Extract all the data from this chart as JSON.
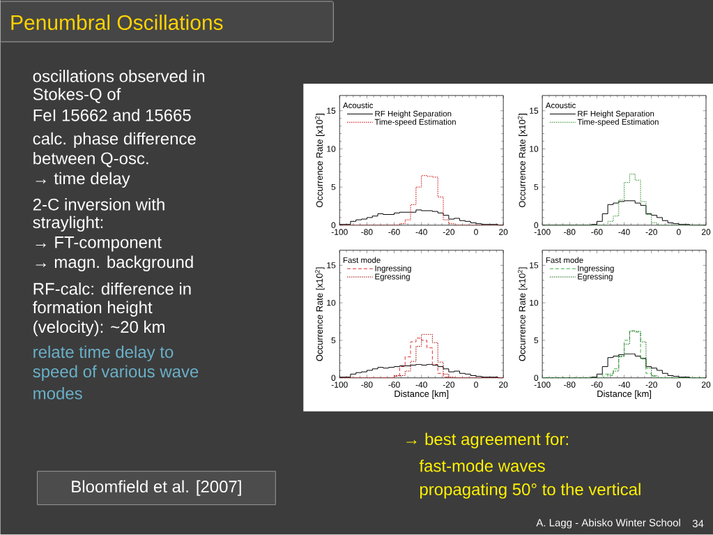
{
  "chart_data": [
    {
      "type": "histogram",
      "bins": [
        -100,
        -96,
        -92,
        -88,
        -84,
        -80,
        -76,
        -72,
        -68,
        -64,
        -60,
        -56,
        -52,
        -48,
        -44,
        -40,
        -36,
        -32,
        -28,
        -24,
        -20,
        -16,
        -12,
        -8,
        -4,
        0,
        4,
        8,
        12,
        16,
        20
      ],
      "ylabel": "Occurrence Rate [x10$^{2}$]",
      "legend_title": "Acoustic",
      "legend": "top left",
      "xlim": [
        -100,
        20
      ],
      "ylim": [
        0,
        17
      ],
      "xticks": [
        -100,
        -80,
        -60,
        -40,
        -20,
        0,
        20
      ],
      "yticks": [
        0,
        5,
        10,
        15
      ],
      "series": [
        {
          "name": "RF Height Separation",
          "color": "#000000",
          "line_style": "solid",
          "values": [
            0.1,
            0.1,
            0.5,
            0.7,
            0.8,
            1.0,
            1.2,
            1.5,
            1.4,
            1.4,
            1.6,
            1.7,
            1.7,
            1.7,
            2.0,
            1.9,
            1.9,
            1.8,
            1.6,
            1.3,
            0.8,
            0.9,
            0.6,
            0.5,
            0.3,
            0.2,
            0.1,
            0.1,
            0.1,
            0
          ]
        },
        {
          "name": "Time-speed Estimation",
          "color": "#cc0000",
          "line_style": "dotted",
          "values": [
            0,
            0,
            0,
            0,
            0,
            0,
            0,
            0,
            0,
            0,
            0,
            0.2,
            0.7,
            2.7,
            5.0,
            6.5,
            6.4,
            6.3,
            3.7,
            0.7,
            0.2,
            0,
            0,
            0,
            0,
            0,
            0,
            0,
            0,
            0
          ]
        }
      ]
    },
    {
      "type": "histogram",
      "bins": [
        -100,
        -96,
        -92,
        -88,
        -84,
        -80,
        -76,
        -72,
        -68,
        -64,
        -60,
        -56,
        -52,
        -48,
        -44,
        -40,
        -36,
        -32,
        -28,
        -24,
        -20,
        -16,
        -12,
        -8,
        -4,
        0,
        4,
        8,
        12,
        16,
        20
      ],
      "ylabel": "Occurrence Rate [x10$^{2}$]",
      "legend_title": "Acoustic",
      "legend": "top left",
      "xlim": [
        -100,
        20
      ],
      "ylim": [
        0,
        17
      ],
      "xticks": [
        -100,
        -80,
        -60,
        -40,
        -20,
        0,
        20
      ],
      "yticks": [
        0,
        5,
        10,
        15
      ],
      "series": [
        {
          "name": "RF Height Separation",
          "color": "#000000",
          "line_style": "solid",
          "values": [
            0,
            0,
            0,
            0,
            0,
            0,
            0,
            0,
            0,
            0.1,
            0.5,
            1.5,
            2.7,
            2.9,
            3.1,
            3.2,
            3.2,
            2.9,
            2.6,
            1.5,
            1.3,
            1.0,
            0.6,
            0.3,
            0.2,
            0.1,
            0.1,
            0,
            0,
            0
          ]
        },
        {
          "name": "Time-speed Estimation",
          "color": "#228b22",
          "line_style": "dotted",
          "values": [
            0,
            0,
            0,
            0,
            0,
            0,
            0,
            0,
            0,
            0,
            0,
            0,
            0.5,
            1.2,
            3.3,
            5.6,
            6.7,
            5.9,
            3.1,
            1.4,
            0.3,
            0,
            0,
            0,
            0,
            0,
            0,
            0,
            0,
            0
          ]
        }
      ]
    },
    {
      "type": "histogram",
      "bins": [
        -100,
        -96,
        -92,
        -88,
        -84,
        -80,
        -76,
        -72,
        -68,
        -64,
        -60,
        -56,
        -52,
        -48,
        -44,
        -40,
        -36,
        -32,
        -28,
        -24,
        -20,
        -16,
        -12,
        -8,
        -4,
        0,
        4,
        8,
        12,
        16,
        20
      ],
      "xlabel": "Distance [km]",
      "ylabel": "Occurrence Rate [x10$^{2}$]",
      "legend_title": "Fast mode",
      "legend": "top left",
      "xlim": [
        -100,
        20
      ],
      "ylim": [
        0,
        17
      ],
      "xticks": [
        -100,
        -80,
        -60,
        -40,
        -20,
        0,
        20
      ],
      "yticks": [
        0,
        5,
        10,
        15
      ],
      "series": [
        {
          "color": "#000000",
          "line_style": "solid",
          "values": [
            0.1,
            0.1,
            0.5,
            0.7,
            0.8,
            1.0,
            1.2,
            1.4,
            1.3,
            1.4,
            1.5,
            1.6,
            1.6,
            1.7,
            1.8,
            1.7,
            1.8,
            1.7,
            1.5,
            1.2,
            0.8,
            0.9,
            0.6,
            0.5,
            0.3,
            0.2,
            0.1,
            0.1,
            0.1,
            0
          ]
        },
        {
          "name": "Ingressing",
          "color": "#e03030",
          "line_style": "dashed",
          "values": [
            0,
            0,
            0,
            0,
            0,
            0,
            0,
            0,
            0,
            0,
            0.2,
            1.5,
            2.8,
            4.8,
            5.3,
            5.0,
            4.0,
            1.8,
            0.6,
            0.1,
            0,
            0,
            0,
            0,
            0,
            0,
            0,
            0,
            0,
            0
          ]
        },
        {
          "name": "Egressing",
          "color": "#a00000",
          "line_style": "dotted",
          "values": [
            0,
            0,
            0,
            0,
            0,
            0,
            0,
            0,
            0,
            0,
            0.3,
            0.3,
            0.9,
            2.2,
            4.2,
            5.8,
            5.8,
            4.7,
            2.1,
            0.5,
            0.1,
            0,
            0,
            0,
            0,
            0,
            0,
            0,
            0,
            0
          ]
        }
      ]
    },
    {
      "type": "histogram",
      "bins": [
        -100,
        -96,
        -92,
        -88,
        -84,
        -80,
        -76,
        -72,
        -68,
        -64,
        -60,
        -56,
        -52,
        -48,
        -44,
        -40,
        -36,
        -32,
        -28,
        -24,
        -20,
        -16,
        -12,
        -8,
        -4,
        0,
        4,
        8,
        12,
        16,
        20
      ],
      "xlabel": "Distance [km]",
      "ylabel": "Occurrence Rate [x10$^{2}$]",
      "legend_title": "Fast mode",
      "legend": "top left",
      "xlim": [
        -100,
        20
      ],
      "ylim": [
        0,
        17
      ],
      "xticks": [
        -100,
        -80,
        -60,
        -40,
        -20,
        0,
        20
      ],
      "yticks": [
        0,
        5,
        10,
        15
      ],
      "series": [
        {
          "color": "#000000",
          "line_style": "solid",
          "values": [
            0,
            0,
            0,
            0,
            0,
            0,
            0,
            0,
            0,
            0.1,
            0.5,
            1.5,
            2.7,
            2.9,
            3.1,
            3.2,
            3.2,
            2.9,
            2.6,
            1.5,
            1.3,
            1.0,
            0.6,
            0.3,
            0.2,
            0.1,
            0.1,
            0,
            0,
            0
          ]
        },
        {
          "name": "Ingressing",
          "color": "#3cb043",
          "line_style": "dashed",
          "values": [
            0,
            0,
            0,
            0,
            0,
            0,
            0,
            0,
            0,
            0,
            0,
            0.5,
            0.3,
            1.2,
            2.8,
            5.0,
            6.3,
            6.1,
            2.5,
            0.6,
            0.2,
            0,
            0,
            0,
            0,
            0,
            0,
            0,
            0,
            0
          ]
        },
        {
          "name": "Egressing",
          "color": "#146414",
          "line_style": "dotted",
          "values": [
            0,
            0,
            0,
            0,
            0,
            0,
            0,
            0,
            0,
            0,
            0,
            0,
            0.5,
            0.9,
            2.9,
            4.5,
            6.2,
            6.2,
            4.8,
            1.3,
            0.3,
            0,
            0,
            0,
            0,
            0,
            0,
            0,
            0,
            0
          ]
        }
      ]
    },
    {
      "type": "other",
      "title": "Penumbral Oscillations",
      "annotations": [
        "oscillations observed in",
        "Stokes-Q of",
        "FeI 15662 and 15665",
        "calc. phase difference",
        "between Q-osc.",
        "→ time delay",
        "2-C inversion with",
        "straylight:",
        "→ FT-component",
        "→ magn. background",
        "RF-calc: difference in",
        "formation height",
        "(velocity): ~20 km",
        "relate time delay to",
        "speed of various wave",
        "modes",
        "Bloomfield et al. [2007]",
        "→ best agreement for:",
        "fast-mode waves",
        "propagating 50° to the vertical",
        "A. Lagg - Abisko Winter School",
        "34"
      ]
    }
  ]
}
